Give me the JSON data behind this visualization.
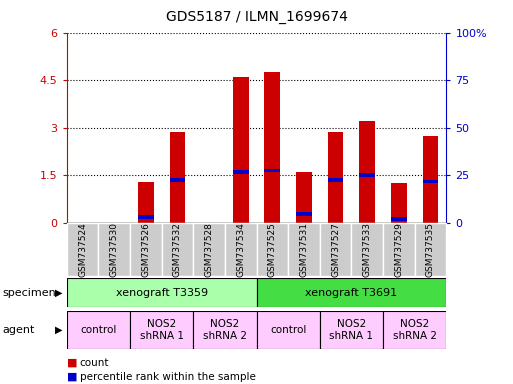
{
  "title": "GDS5187 / ILMN_1699674",
  "categories": [
    "GSM737524",
    "GSM737530",
    "GSM737526",
    "GSM737532",
    "GSM737528",
    "GSM737534",
    "GSM737525",
    "GSM737531",
    "GSM737527",
    "GSM737533",
    "GSM737529",
    "GSM737535"
  ],
  "red_values": [
    0.0,
    0.0,
    1.3,
    2.85,
    0.0,
    4.6,
    4.75,
    1.6,
    2.85,
    3.2,
    1.25,
    2.75
  ],
  "blue_positions": [
    0.0,
    0.0,
    0.18,
    1.35,
    0.0,
    1.6,
    1.65,
    0.28,
    1.35,
    1.5,
    0.13,
    1.3
  ],
  "ylim_left": [
    0,
    6
  ],
  "ylim_right": [
    0,
    100
  ],
  "yticks_left": [
    0,
    1.5,
    3,
    4.5,
    6
  ],
  "ytick_labels_left": [
    "0",
    "1.5",
    "3",
    "4.5",
    "6"
  ],
  "yticks_right": [
    0,
    25,
    50,
    75,
    100
  ],
  "ytick_labels_right": [
    "0",
    "25",
    "50",
    "75",
    "100%"
  ],
  "left_axis_color": "#cc0000",
  "right_axis_color": "#0000cc",
  "bar_color": "#cc0000",
  "blue_marker_color": "#0000cc",
  "grid_color": "#000000",
  "specimen_row": {
    "label": "specimen",
    "groups": [
      {
        "text": "xenograft T3359",
        "start": 0,
        "end": 5,
        "color": "#aaffaa"
      },
      {
        "text": "xenograft T3691",
        "start": 6,
        "end": 11,
        "color": "#44dd44"
      }
    ]
  },
  "agent_row": {
    "label": "agent",
    "groups": [
      {
        "text": "control",
        "start": 0,
        "end": 1,
        "color": "#ffccff"
      },
      {
        "text": "NOS2\nshRNA 1",
        "start": 2,
        "end": 3,
        "color": "#ffccff"
      },
      {
        "text": "NOS2\nshRNA 2",
        "start": 4,
        "end": 5,
        "color": "#ffccff"
      },
      {
        "text": "control",
        "start": 6,
        "end": 7,
        "color": "#ffccff"
      },
      {
        "text": "NOS2\nshRNA 1",
        "start": 8,
        "end": 9,
        "color": "#ffccff"
      },
      {
        "text": "NOS2\nshRNA 2",
        "start": 10,
        "end": 11,
        "color": "#ffccff"
      }
    ]
  },
  "legend": [
    {
      "label": "count",
      "color": "#cc0000"
    },
    {
      "label": "percentile rank within the sample",
      "color": "#0000cc"
    }
  ],
  "bar_width": 0.5,
  "tick_label_bg": "#cccccc"
}
